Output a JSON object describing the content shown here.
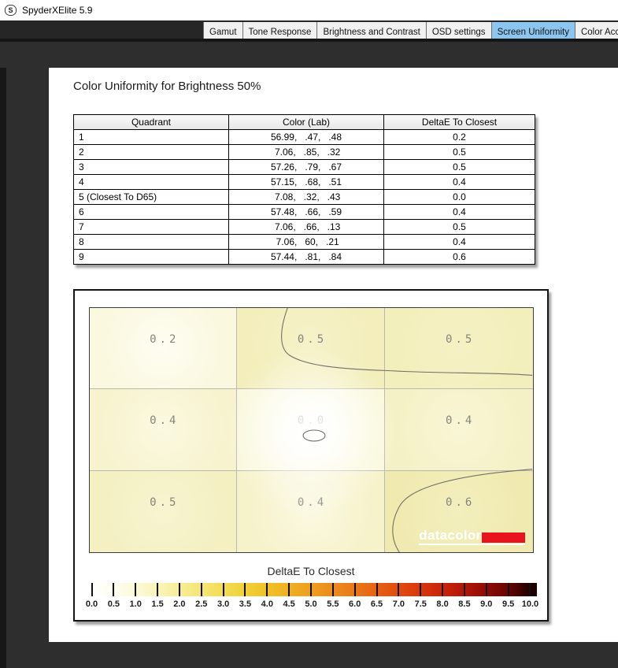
{
  "titlebar": {
    "app_title": "SpyderXElite 5.9",
    "logo_letter": "S"
  },
  "tabs": {
    "selected_bg": "#8cc6f0",
    "items": [
      {
        "label": "Gamut",
        "selected": false
      },
      {
        "label": "Tone Response",
        "selected": false
      },
      {
        "label": "Brightness and Contrast",
        "selected": false
      },
      {
        "label": "OSD settings",
        "selected": false
      },
      {
        "label": "Screen Uniformity",
        "selected": true
      },
      {
        "label": "Color Accuracy",
        "selected": false
      }
    ]
  },
  "heading": "Color Uniformity for Brightness 50%",
  "table": {
    "columns": [
      "Quadrant",
      "Color (Lab)",
      "DeltaE To Closest"
    ],
    "rows": [
      {
        "quadrant": "1",
        "lab": "56.99,   .47,   .48",
        "delta": "0.2"
      },
      {
        "quadrant": "2",
        "lab": " 7.06,   .85,   .32",
        "delta": "0.5"
      },
      {
        "quadrant": "3",
        "lab": "57.26,   .79,   .67",
        "delta": "0.5"
      },
      {
        "quadrant": "4",
        "lab": "57.15,   .68,   .51",
        "delta": "0.4"
      },
      {
        "quadrant": "5 (Closest To D65)",
        "lab": " 7.08,   .32,   .43",
        "delta": "0.0"
      },
      {
        "quadrant": "6",
        "lab": "57.48,   .66,   .59",
        "delta": "0.4"
      },
      {
        "quadrant": "7",
        "lab": " 7.06,   .66,   .13",
        "delta": "0.5"
      },
      {
        "quadrant": "8",
        "lab": " 7.06,   60,   .21",
        "delta": "0.4"
      },
      {
        "quadrant": "9",
        "lab": "57.44,   .81,   .84",
        "delta": "0.6"
      }
    ]
  },
  "heatmap": {
    "cells": [
      {
        "value": "0.2",
        "inner": "#fffdf2",
        "outer": "#faf8de"
      },
      {
        "value": "0.5",
        "inner": "#f6f2c9",
        "outer": "#f3eebb"
      },
      {
        "value": "0.5",
        "inner": "#f5f1c4",
        "outer": "#f3efbc"
      },
      {
        "value": "0.4",
        "inner": "#fbf9e0",
        "outer": "#f7f3cf"
      },
      {
        "value": "0.0",
        "inner": "#ffffff",
        "outer": "#faf8dc"
      },
      {
        "value": "0.4",
        "inner": "#f9f6d6",
        "outer": "#f5f1c6"
      },
      {
        "value": "0.5",
        "inner": "#f7f4d0",
        "outer": "#f4f0c2"
      },
      {
        "value": "0.4",
        "inner": "#fbf9e2",
        "outer": "#f6f2ca"
      },
      {
        "value": "0.6",
        "inner": "#f3efbe",
        "outer": "#f0eab0"
      }
    ],
    "watermark": {
      "text": "datacolor",
      "accent": "#e8131f"
    },
    "colorbar": {
      "title": "DeltaE To Closest",
      "tick_labels": [
        "0.0",
        "0.5",
        "1.0",
        "1.5",
        "2.0",
        "2.5",
        "3.0",
        "3.5",
        "4.0",
        "4.5",
        "5.0",
        "5.5",
        "6.0",
        "6.5",
        "7.0",
        "7.5",
        "8.0",
        "8.5",
        "9.0",
        "9.5",
        "10.0"
      ],
      "stops": [
        "#ffffff",
        "#fffdf0",
        "#fcf9d8",
        "#faf4b8",
        "#f7ed96",
        "#f5e573",
        "#f3dc52",
        "#f1d037",
        "#f0c127",
        "#efb022",
        "#ee9e1f",
        "#ec8b1c",
        "#ea7718",
        "#e66114",
        "#e14b10",
        "#d9360c",
        "#c92409",
        "#b01506",
        "#8f0b04",
        "#650502",
        "#1c0100"
      ]
    }
  }
}
